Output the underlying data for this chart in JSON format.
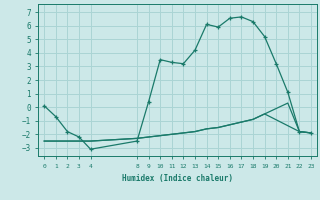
{
  "background_color": "#cce8e8",
  "grid_color": "#aad4d4",
  "line_color": "#1a7a6a",
  "xlabel": "Humidex (Indice chaleur)",
  "xlim": [
    -0.5,
    23.5
  ],
  "ylim": [
    -3.6,
    7.6
  ],
  "xtick_positions": [
    0,
    1,
    2,
    3,
    4,
    8,
    9,
    10,
    11,
    12,
    13,
    14,
    15,
    16,
    17,
    18,
    19,
    20,
    21,
    22,
    23
  ],
  "ytick_positions": [
    -3,
    -2,
    -1,
    0,
    1,
    2,
    3,
    4,
    5,
    6,
    7
  ],
  "curve1_x": [
    0,
    1,
    2,
    3,
    4,
    8,
    9,
    10,
    11,
    12,
    13,
    14,
    15,
    16,
    17,
    18,
    19,
    20,
    21,
    22,
    23
  ],
  "curve1_y": [
    0.1,
    -0.7,
    -1.8,
    -2.2,
    -3.1,
    -2.5,
    0.4,
    3.5,
    3.3,
    3.2,
    4.2,
    6.1,
    5.9,
    6.55,
    6.65,
    6.3,
    5.2,
    3.2,
    1.1,
    -1.8,
    -1.9
  ],
  "curve2_x": [
    0,
    4,
    8,
    10,
    11,
    12,
    13,
    14,
    15,
    16,
    17,
    18,
    19,
    20,
    21,
    22,
    23
  ],
  "curve2_y": [
    -2.5,
    -2.5,
    -2.3,
    -2.1,
    -2.0,
    -1.9,
    -1.8,
    -1.6,
    -1.5,
    -1.3,
    -1.1,
    -0.9,
    -0.5,
    -0.1,
    0.3,
    -1.8,
    -1.9
  ],
  "curve3_x": [
    0,
    4,
    8,
    10,
    11,
    12,
    13,
    14,
    15,
    16,
    17,
    18,
    19,
    22,
    23
  ],
  "curve3_y": [
    -2.5,
    -2.5,
    -2.3,
    -2.1,
    -2.0,
    -1.9,
    -1.8,
    -1.6,
    -1.5,
    -1.3,
    -1.1,
    -0.9,
    -0.5,
    -1.8,
    -1.9
  ]
}
